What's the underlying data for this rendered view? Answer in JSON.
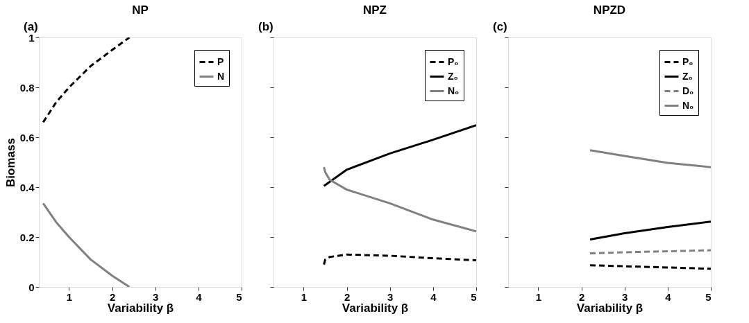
{
  "chart_data": [
    {
      "type": "line",
      "title": "NP",
      "annotations": [
        "(a)"
      ],
      "xlabel": "Variability β",
      "ylabel": "Biomass",
      "xlim": [
        0.3,
        5
      ],
      "xticks": [
        1,
        2,
        3,
        4,
        5
      ],
      "ylim": [
        0,
        1
      ],
      "yticks": [
        0,
        0.2,
        0.4,
        0.6,
        0.8,
        1
      ],
      "legend": "top right",
      "series": [
        {
          "name": "P",
          "color": "#000000",
          "line_style": "dashed",
          "x": [
            0.4,
            0.7,
            1,
            1.5,
            2,
            2.4
          ],
          "values": [
            0.66,
            0.74,
            0.8,
            0.885,
            0.95,
            1.0
          ]
        },
        {
          "name": "N",
          "color": "#808080",
          "line_style": "solid",
          "x": [
            0.4,
            0.7,
            1,
            1.5,
            2,
            2.4
          ],
          "values": [
            0.335,
            0.26,
            0.2,
            0.11,
            0.045,
            0.0
          ]
        }
      ]
    },
    {
      "type": "line",
      "title": "NPZ",
      "annotations": [
        "(b)"
      ],
      "xlabel": "Variability β",
      "xlim": [
        0.3,
        5
      ],
      "xticks": [
        1,
        2,
        3,
        4,
        5
      ],
      "ylim": [
        0,
        1
      ],
      "yticks": [
        0,
        0.2,
        0.4,
        0.6,
        0.8,
        1
      ],
      "tick_labels": "x",
      "legend": "top right",
      "series": [
        {
          "name": "P₀",
          "color": "#000000",
          "line_style": "dashed",
          "x": [
            1.47,
            1.5,
            1.6,
            2,
            3,
            4,
            5
          ],
          "values": [
            0.09,
            0.11,
            0.12,
            0.13,
            0.125,
            0.115,
            0.107
          ]
        },
        {
          "name": "Z₀",
          "color": "#000000",
          "line_style": "solid",
          "x": [
            1.47,
            2,
            3,
            4,
            5
          ],
          "values": [
            0.405,
            0.47,
            0.535,
            0.59,
            0.648
          ]
        },
        {
          "name": "N₀",
          "color": "#808080",
          "line_style": "solid",
          "x": [
            1.47,
            1.5,
            1.6,
            2,
            3,
            4,
            5
          ],
          "values": [
            0.48,
            0.46,
            0.43,
            0.39,
            0.335,
            0.27,
            0.223
          ]
        }
      ]
    },
    {
      "type": "line",
      "title": "NPZD",
      "annotations": [
        "(c)"
      ],
      "xlabel": "Variability β",
      "xlim": [
        0.3,
        5
      ],
      "xticks": [
        1,
        2,
        3,
        4,
        5
      ],
      "ylim": [
        0,
        1
      ],
      "yticks": [
        0,
        0.2,
        0.4,
        0.6,
        0.8,
        1
      ],
      "tick_labels": "x",
      "legend": "top right",
      "series": [
        {
          "name": "P₀",
          "color": "#000000",
          "line_style": "dashed",
          "x": [
            2.2,
            3,
            4,
            5
          ],
          "values": [
            0.087,
            0.083,
            0.078,
            0.073
          ]
        },
        {
          "name": "Z₀",
          "color": "#000000",
          "line_style": "solid",
          "x": [
            2.2,
            3,
            4,
            5
          ],
          "values": [
            0.19,
            0.215,
            0.24,
            0.262
          ]
        },
        {
          "name": "D₀",
          "color": "#808080",
          "line_style": "dashed",
          "x": [
            2.2,
            3,
            4,
            5
          ],
          "values": [
            0.135,
            0.139,
            0.143,
            0.147
          ]
        },
        {
          "name": "N₀",
          "color": "#808080",
          "line_style": "solid",
          "x": [
            2.2,
            3,
            4,
            5
          ],
          "values": [
            0.548,
            0.525,
            0.497,
            0.48
          ]
        }
      ]
    }
  ]
}
